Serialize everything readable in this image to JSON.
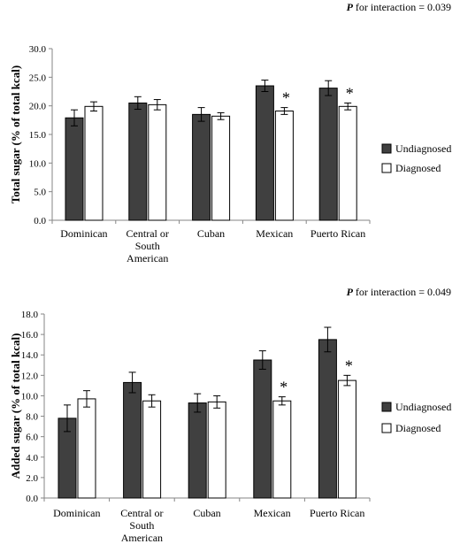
{
  "chart_data": [
    {
      "type": "bar",
      "annotation": "P for interaction = 0.039",
      "annotation_italic": "P",
      "annotation_rest": " for interaction = 0.039",
      "ylabel": "Total sugar  (% of total kcal)",
      "ylim": [
        0,
        30
      ],
      "yticks": [
        "0.0",
        "5.0",
        "10.0",
        "15.0",
        "20.0",
        "25.0",
        "30.0"
      ],
      "categories": [
        [
          "Dominican"
        ],
        [
          "Central or",
          "South",
          "American"
        ],
        [
          "Cuban"
        ],
        [
          "Mexican"
        ],
        [
          "Puerto Rican"
        ]
      ],
      "series": [
        {
          "name": "Undiagnosed",
          "color": "#404040",
          "values": [
            17.9,
            20.5,
            18.5,
            23.5,
            23.1
          ],
          "errors": [
            1.4,
            1.1,
            1.2,
            1.0,
            1.3
          ]
        },
        {
          "name": "Diagnosed",
          "color": "#ffffff",
          "values": [
            19.9,
            20.2,
            18.2,
            19.1,
            19.9
          ],
          "errors": [
            0.8,
            0.9,
            0.6,
            0.6,
            0.6
          ]
        }
      ],
      "significance_marker": "*",
      "significant_categories": [
        3,
        4
      ],
      "legend_position": "right"
    },
    {
      "type": "bar",
      "annotation": "P for interaction = 0.049",
      "annotation_italic": "P",
      "annotation_rest": " for interaction = 0.049",
      "ylabel": "Added sugar (% of total kcal)",
      "ylim": [
        0,
        18
      ],
      "yticks": [
        "0.0",
        "2.0",
        "4.0",
        "6.0",
        "8.0",
        "10.0",
        "12.0",
        "14.0",
        "16.0",
        "18.0"
      ],
      "categories": [
        [
          "Dominican"
        ],
        [
          "Central or",
          "South",
          "American"
        ],
        [
          "Cuban"
        ],
        [
          "Mexican"
        ],
        [
          "Puerto Rican"
        ]
      ],
      "series": [
        {
          "name": "Undiagnosed",
          "color": "#404040",
          "values": [
            7.8,
            11.3,
            9.3,
            13.5,
            15.5
          ],
          "errors": [
            1.3,
            1.0,
            0.9,
            0.9,
            1.2
          ]
        },
        {
          "name": "Diagnosed",
          "color": "#ffffff",
          "values": [
            9.7,
            9.5,
            9.4,
            9.5,
            11.5
          ],
          "errors": [
            0.8,
            0.6,
            0.6,
            0.4,
            0.5
          ]
        }
      ],
      "significance_marker": "*",
      "significant_categories": [
        3,
        4
      ],
      "legend_position": "right"
    }
  ]
}
